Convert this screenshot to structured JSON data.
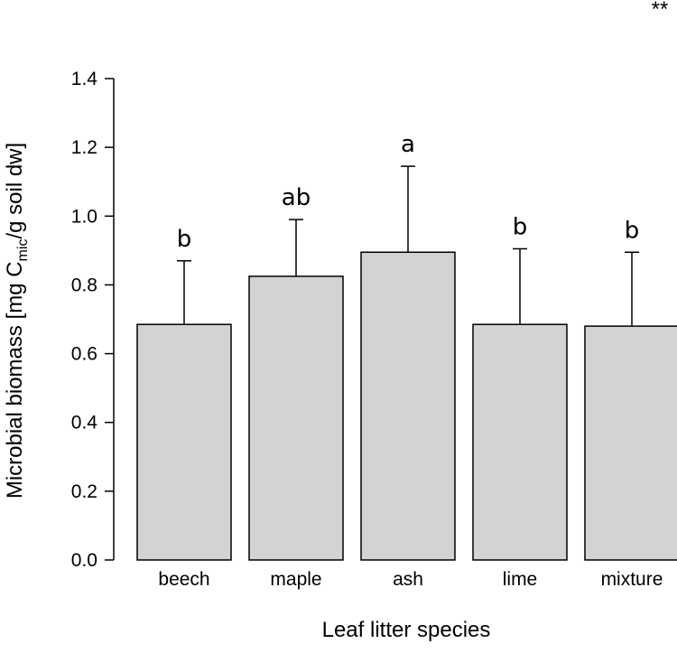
{
  "chart_data": {
    "type": "bar",
    "categories": [
      "beech",
      "maple",
      "ash",
      "lime",
      "mixture"
    ],
    "values": [
      0.685,
      0.825,
      0.895,
      0.685,
      0.68
    ],
    "error_upper": [
      0.87,
      0.99,
      1.145,
      0.905,
      0.895
    ],
    "significance_letters": [
      "b",
      "ab",
      "a",
      "b",
      "b"
    ],
    "xlabel": "Leaf litter species",
    "ylabel_parts": {
      "main": "Microbial biomass [mg C",
      "sub": "mic",
      "tail": "/g soil dw]"
    },
    "ylim": [
      0,
      1.4
    ],
    "yticks": [
      "0.0",
      "0.2",
      "0.4",
      "0.6",
      "0.8",
      "1.0",
      "1.2",
      "1.4"
    ],
    "bar_color": "#d3d3d3",
    "grid": false,
    "corner_mark": "**"
  }
}
